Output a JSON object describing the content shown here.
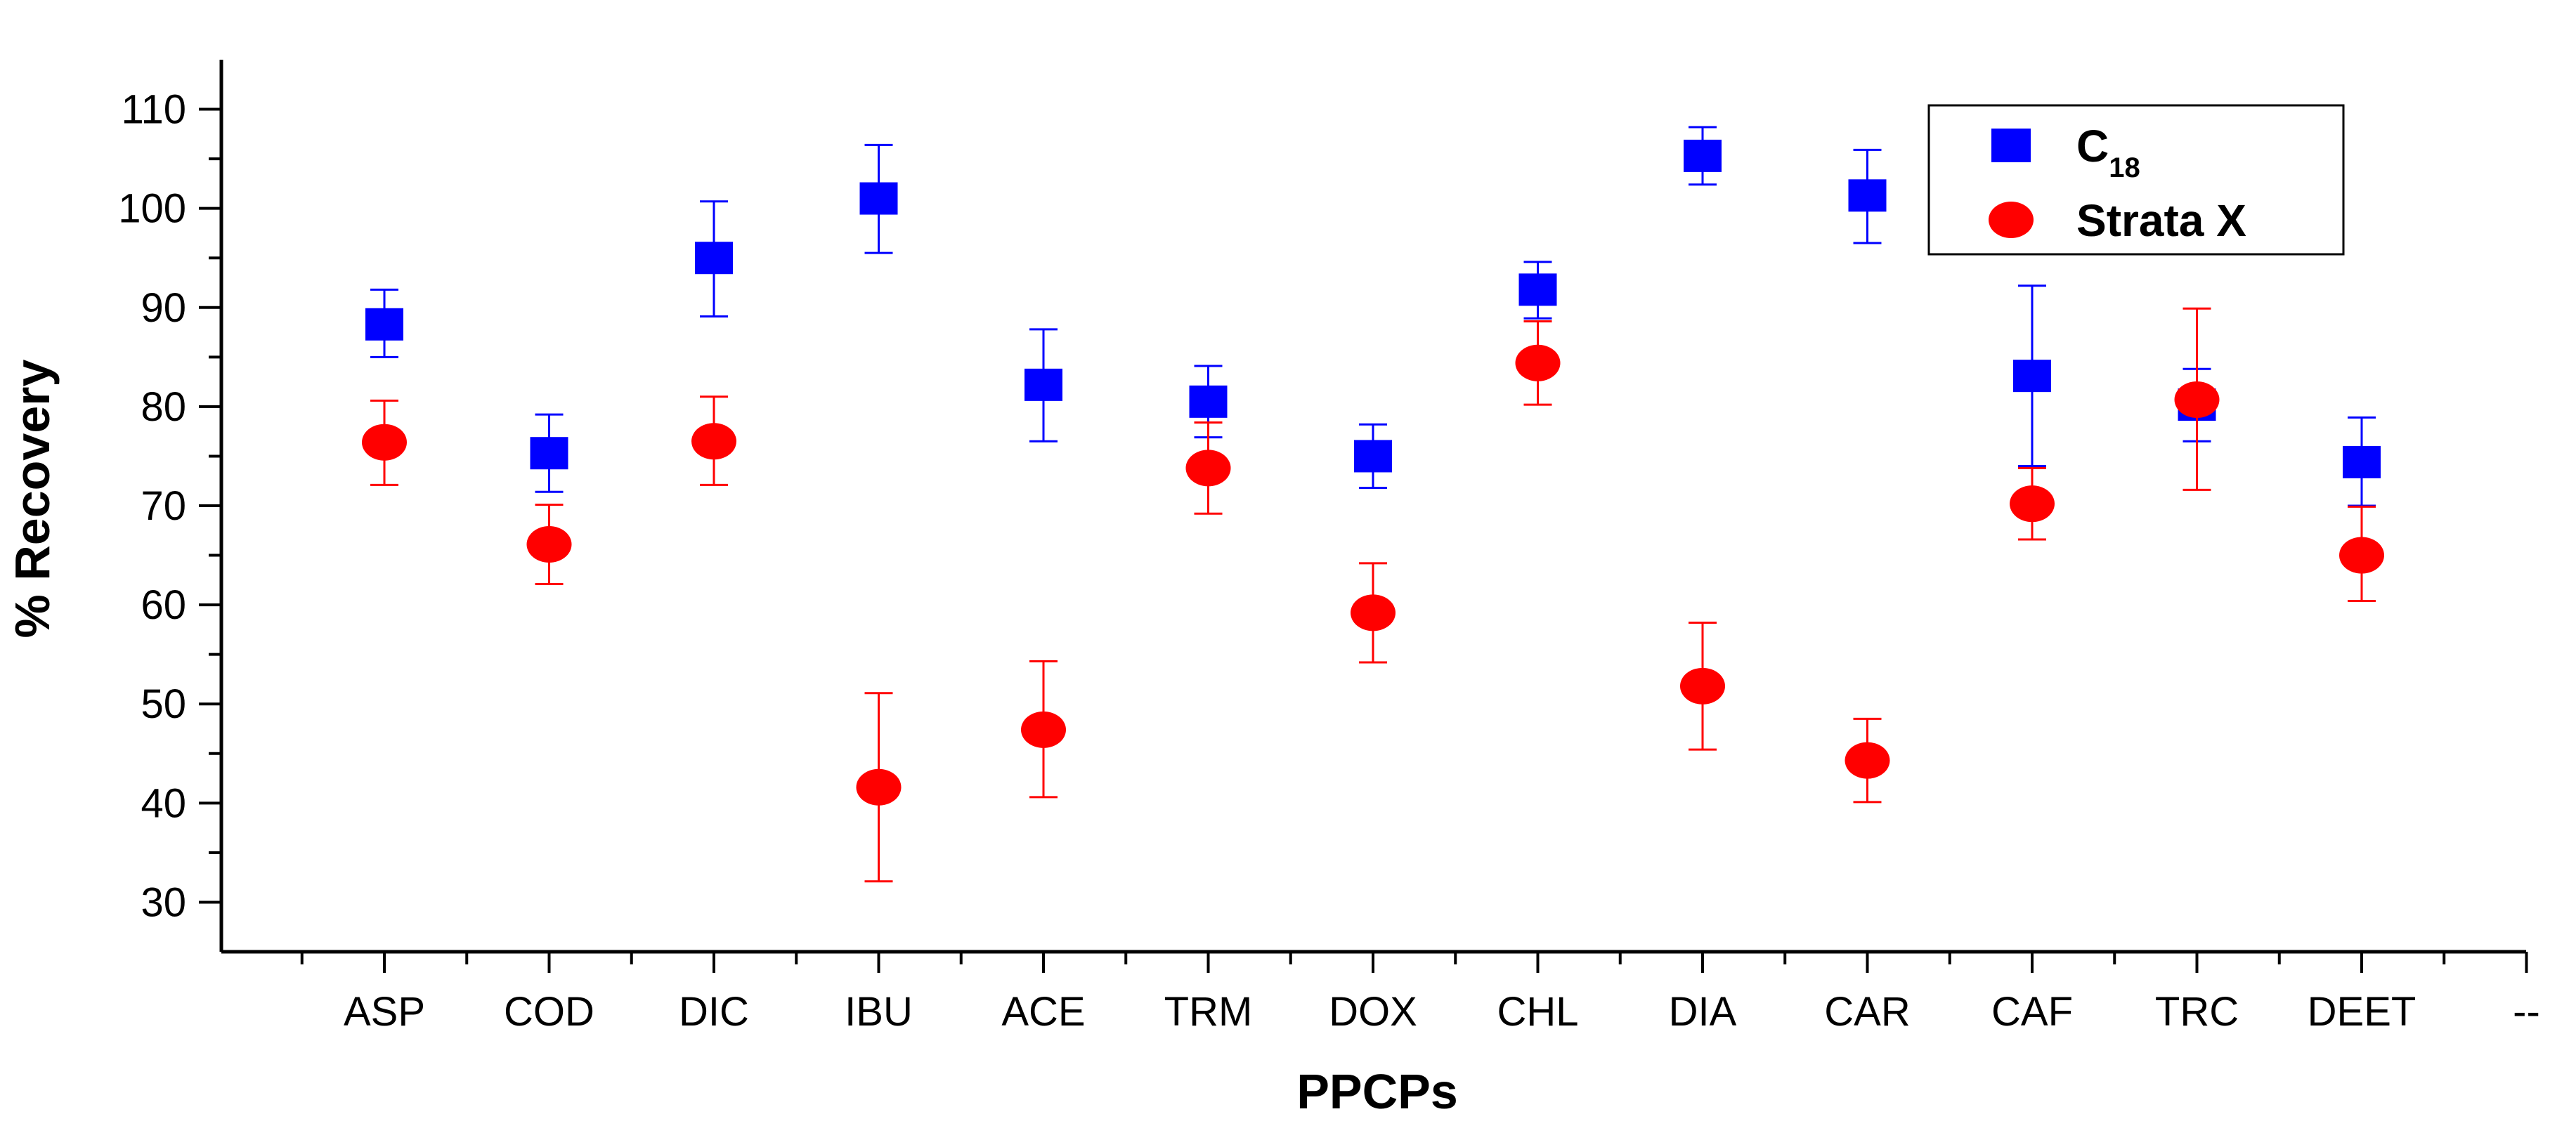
{
  "chart_data": {
    "type": "scatter",
    "title": "",
    "xlabel": "PPCPs",
    "ylabel": "% Recovery",
    "categories": [
      "ASP",
      "COD",
      "DIC",
      "IBU",
      "ACE",
      "TRM",
      "DOX",
      "CHL",
      "DIA",
      "CAR",
      "CAF",
      "TRC",
      "DEET",
      "--"
    ],
    "ylim": [
      25,
      115
    ],
    "yticks": [
      30,
      40,
      50,
      60,
      70,
      80,
      90,
      100,
      110
    ],
    "grid": false,
    "legend_position": "top-right",
    "series": [
      {
        "name": "C18",
        "legend_main": "C",
        "legend_sub": "18",
        "marker": "square",
        "color": "#0000ff",
        "values": [
          88.3,
          75.3,
          95.0,
          101.0,
          82.2,
          80.5,
          75.0,
          91.8,
          105.3,
          101.3,
          83.1,
          80.2,
          74.4
        ],
        "err_low": [
          85.0,
          71.4,
          89.1,
          95.5,
          76.5,
          76.9,
          71.8,
          88.9,
          102.4,
          96.5,
          74.0,
          76.5,
          70.0
        ],
        "err_high": [
          91.8,
          79.2,
          100.7,
          106.4,
          87.8,
          84.1,
          78.2,
          94.6,
          108.2,
          105.9,
          92.2,
          83.8,
          78.9
        ]
      },
      {
        "name": "Strata X",
        "legend_main": "Strata X",
        "legend_sub": "",
        "marker": "circle",
        "color": "#ff0000",
        "values": [
          76.4,
          66.1,
          76.5,
          41.6,
          47.4,
          73.8,
          59.2,
          84.4,
          51.8,
          44.3,
          70.2,
          80.7,
          65.0
        ],
        "err_low": [
          72.1,
          62.1,
          72.1,
          32.1,
          40.6,
          69.2,
          54.2,
          80.2,
          45.4,
          40.1,
          66.6,
          71.6,
          60.4
        ],
        "err_high": [
          80.6,
          70.1,
          81.0,
          51.1,
          54.3,
          78.4,
          64.2,
          88.6,
          58.2,
          48.5,
          73.8,
          89.9,
          69.9
        ]
      }
    ]
  }
}
